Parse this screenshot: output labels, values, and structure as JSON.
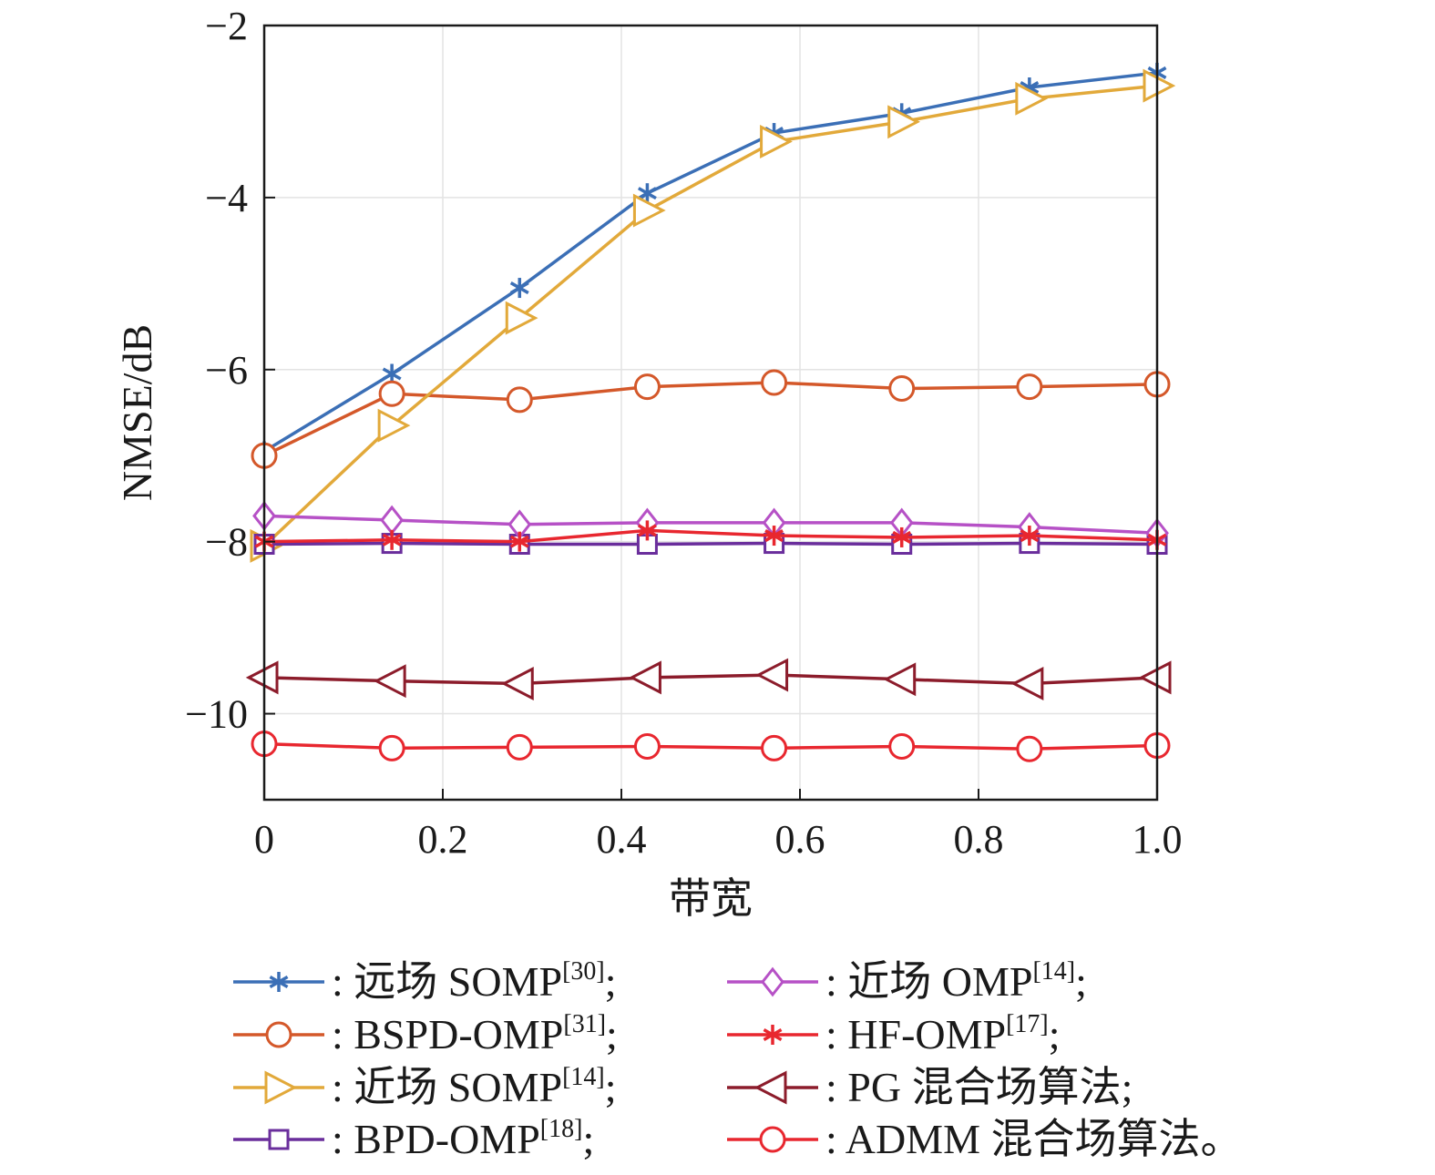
{
  "chart_data": {
    "type": "line",
    "xlabel": "带宽",
    "ylabel": "NMSE/dB",
    "xlim": [
      0,
      1.0
    ],
    "ylim": [
      -11,
      -2
    ],
    "x_ticks": [
      0,
      0.2,
      0.4,
      0.6,
      0.8,
      1.0
    ],
    "x_tick_labels": [
      "0",
      "0.2",
      "0.4",
      "0.6",
      "0.8",
      "1.0"
    ],
    "y_ticks": [
      -10,
      -8,
      -6,
      -4,
      -2
    ],
    "y_tick_labels": [
      "−10",
      "−8",
      "−6",
      "−4",
      "−2"
    ],
    "grid": true,
    "legend_position": "bottom",
    "x": [
      0,
      0.143,
      0.286,
      0.429,
      0.571,
      0.714,
      0.857,
      1.0
    ],
    "series": [
      {
        "name": "远场 SOMP",
        "ref": "[30]",
        "suffix": ";",
        "color": "#3b6fb6",
        "marker": "asterisk",
        "values": [
          -6.95,
          -6.05,
          -5.05,
          -3.95,
          -3.25,
          -3.02,
          -2.72,
          -2.55
        ]
      },
      {
        "name": "BSPD-OMP",
        "ref": "[31]",
        "suffix": ";",
        "color": "#d4582a",
        "marker": "circle",
        "values": [
          -7.0,
          -6.28,
          -6.35,
          -6.2,
          -6.15,
          -6.22,
          -6.2,
          -6.17
        ]
      },
      {
        "name": "近场 SOMP",
        "ref": "[14]",
        "suffix": ";",
        "color": "#e2a93a",
        "marker": "triangle-right",
        "values": [
          -8.05,
          -6.65,
          -5.4,
          -4.15,
          -3.35,
          -3.12,
          -2.85,
          -2.7
        ]
      },
      {
        "name": "BPD-OMP",
        "ref": "[18]",
        "suffix": ";",
        "color": "#6a2e9c",
        "marker": "square",
        "values": [
          -8.03,
          -8.02,
          -8.03,
          -8.03,
          -8.02,
          -8.03,
          -8.02,
          -8.03
        ]
      },
      {
        "name": "近场 OMP",
        "ref": "[14]",
        "suffix": ";",
        "color": "#b651c6",
        "marker": "diamond",
        "values": [
          -7.7,
          -7.75,
          -7.8,
          -7.78,
          -7.78,
          -7.78,
          -7.83,
          -7.9
        ]
      },
      {
        "name": "HF-OMP",
        "ref": "[17]",
        "suffix": ";",
        "color": "#e8272f",
        "marker": "asterisk",
        "values": [
          -8.0,
          -7.98,
          -8.0,
          -7.87,
          -7.93,
          -7.95,
          -7.93,
          -7.98
        ]
      },
      {
        "name": "PG 混合场算法",
        "ref": "",
        "suffix": ";",
        "color": "#8c1c2b",
        "marker": "triangle-left",
        "values": [
          -9.58,
          -9.62,
          -9.65,
          -9.58,
          -9.55,
          -9.6,
          -9.65,
          -9.58
        ]
      },
      {
        "name": "ADMM 混合场算法",
        "ref": "",
        "suffix": "。",
        "color": "#e8272f",
        "marker": "circle",
        "values": [
          -10.35,
          -10.4,
          -10.39,
          -10.38,
          -10.4,
          -10.38,
          -10.41,
          -10.37
        ]
      }
    ]
  }
}
